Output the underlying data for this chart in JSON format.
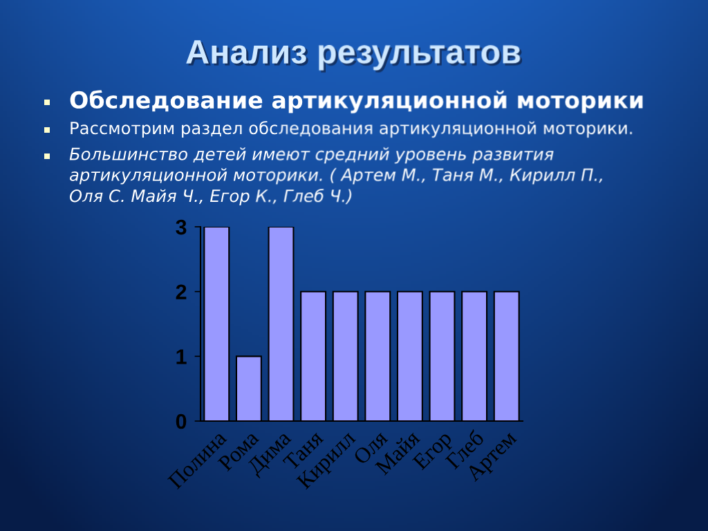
{
  "chart_data": {
    "type": "bar",
    "title": "Анализ результатов",
    "subtitle": "Обследование артикуляционной моторики",
    "annotations": [
      "Рассмотрим раздел обследования артикуляционной моторики.",
      "Большинство детей имеют средний уровень развития артикуляционной моторики. ( Артем М., Таня М., Кирилл П., Оля С. Майя Ч., Егор К., Глеб Ч.)"
    ],
    "categories": [
      "Полина",
      "Рома",
      "Дима",
      "Таня",
      "Кирилл",
      "Оля",
      "Майя",
      "Егор",
      "Глеб",
      "Артем"
    ],
    "values": [
      3,
      1,
      3,
      2,
      2,
      2,
      2,
      2,
      2,
      2
    ],
    "color": "#9999ff",
    "ylim": [
      0,
      3
    ],
    "yticks": [
      0,
      1,
      2,
      3
    ]
  }
}
